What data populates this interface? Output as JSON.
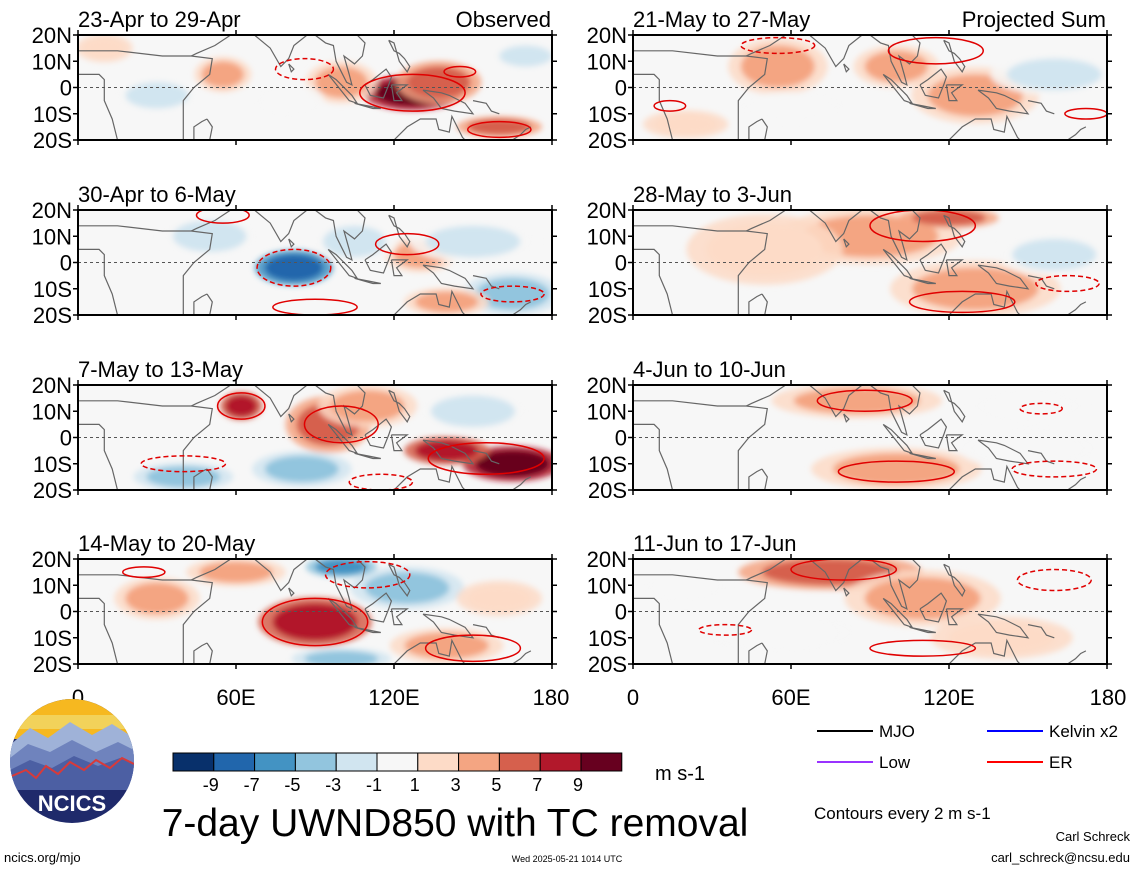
{
  "chart_data": {
    "type": "heatmap",
    "figure_title": "7-day UWND850 with TC removal",
    "variable": "850 hPa zonal wind anomaly",
    "units": "m s-1",
    "contour_note": "Contours every 2 m s-1",
    "x_ticks": [
      "0",
      "60E",
      "120E",
      "180"
    ],
    "y_ticks": [
      "20N",
      "10N",
      "0",
      "10S",
      "20S"
    ],
    "xlim": [
      0,
      180
    ],
    "ylim": [
      -20,
      20
    ],
    "colorbar": {
      "labels": [
        "-9",
        "-7",
        "-5",
        "-3",
        "-1",
        "1",
        "3",
        "5",
        "7",
        "9"
      ],
      "colors": [
        "#08306b",
        "#2166ac",
        "#4393c3",
        "#92c5de",
        "#d1e5f0",
        "#f7f7f7",
        "#fddbc7",
        "#f4a582",
        "#d6604d",
        "#b2182b",
        "#67001f"
      ]
    },
    "legend": [
      {
        "name": "MJO",
        "color": "#000000"
      },
      {
        "name": "Kelvin x2",
        "color": "#0000ff"
      },
      {
        "name": "Low",
        "color": "#9933ff"
      },
      {
        "name": "ER",
        "color": "#ff0000"
      }
    ],
    "panels": [
      {
        "title": "23-Apr to 29-Apr",
        "corner": "Observed",
        "column": 0,
        "row": 0,
        "anomalies": [
          {
            "lon": 127,
            "lat": -2,
            "value": 9,
            "rlon": 14,
            "rlat": 5
          },
          {
            "lon": 137,
            "lat": 2,
            "value": 5,
            "rlon": 12,
            "rlat": 6
          },
          {
            "lon": 160,
            "lat": -15,
            "value": 5,
            "rlon": 12,
            "rlat": 3
          },
          {
            "lon": 55,
            "lat": 5,
            "value": 3,
            "rlon": 8,
            "rlat": 5
          },
          {
            "lon": 100,
            "lat": 2,
            "value": 3,
            "rlon": 10,
            "rlat": 6
          },
          {
            "lon": 30,
            "lat": -3,
            "value": -3,
            "rlon": 12,
            "rlat": 5
          },
          {
            "lon": 80,
            "lat": -5,
            "value": -1,
            "rlon": 10,
            "rlat": 5
          },
          {
            "lon": 170,
            "lat": 12,
            "value": -3,
            "rlon": 10,
            "rlat": 4
          },
          {
            "lon": 10,
            "lat": 15,
            "value": 1,
            "rlon": 8,
            "rlat": 4
          }
        ],
        "contours": [
          {
            "lon": 127,
            "lat": -2,
            "rlon": 20,
            "rlat": 7,
            "dashed": false
          },
          {
            "lon": 86,
            "lat": 7,
            "rlon": 11,
            "rlat": 4,
            "dashed": true
          },
          {
            "lon": 145,
            "lat": 6,
            "rlon": 6,
            "rlat": 2,
            "dashed": false
          },
          {
            "lon": 160,
            "lat": -16,
            "rlon": 12,
            "rlat": 3,
            "dashed": false
          }
        ]
      },
      {
        "title": "30-Apr to 6-May",
        "corner": "",
        "column": 0,
        "row": 1,
        "anomalies": [
          {
            "lon": 82,
            "lat": -2,
            "value": -9,
            "rlon": 11,
            "rlat": 5
          },
          {
            "lon": 130,
            "lat": 3,
            "value": 3,
            "rlon": 10,
            "rlat": 5
          },
          {
            "lon": 105,
            "lat": 8,
            "value": -3,
            "rlon": 12,
            "rlat": 6
          },
          {
            "lon": 50,
            "lat": 10,
            "value": -3,
            "rlon": 14,
            "rlat": 6
          },
          {
            "lon": 165,
            "lat": -12,
            "value": -5,
            "rlon": 14,
            "rlat": 6
          },
          {
            "lon": 140,
            "lat": -15,
            "value": 3,
            "rlon": 12,
            "rlat": 4
          },
          {
            "lon": 150,
            "lat": 8,
            "value": -3,
            "rlon": 18,
            "rlat": 6
          }
        ],
        "contours": [
          {
            "lon": 82,
            "lat": -2,
            "rlon": 14,
            "rlat": 7,
            "dashed": true
          },
          {
            "lon": 125,
            "lat": 7,
            "rlon": 12,
            "rlat": 4,
            "dashed": false
          },
          {
            "lon": 55,
            "lat": 18,
            "rlon": 10,
            "rlat": 3,
            "dashed": false
          },
          {
            "lon": 90,
            "lat": -17,
            "rlon": 16,
            "rlat": 3,
            "dashed": false
          },
          {
            "lon": 165,
            "lat": -12,
            "rlon": 12,
            "rlat": 3,
            "dashed": true
          }
        ]
      },
      {
        "title": "7-May to 13-May",
        "corner": "",
        "column": 0,
        "row": 2,
        "anomalies": [
          {
            "lon": 165,
            "lat": -10,
            "value": 9,
            "rlon": 14,
            "rlat": 5
          },
          {
            "lon": 140,
            "lat": -5,
            "value": 7,
            "rlon": 12,
            "rlat": 4
          },
          {
            "lon": 62,
            "lat": 12,
            "value": 7,
            "rlon": 6,
            "rlat": 4
          },
          {
            "lon": 95,
            "lat": 5,
            "value": 5,
            "rlon": 12,
            "rlat": 8
          },
          {
            "lon": 110,
            "lat": 12,
            "value": 3,
            "rlon": 14,
            "rlat": 6
          },
          {
            "lon": 85,
            "lat": -12,
            "value": -5,
            "rlon": 14,
            "rlat": 5
          },
          {
            "lon": 40,
            "lat": -15,
            "value": -5,
            "rlon": 14,
            "rlat": 4
          },
          {
            "lon": 150,
            "lat": 10,
            "value": -3,
            "rlon": 16,
            "rlat": 6
          }
        ],
        "contours": [
          {
            "lon": 155,
            "lat": -8,
            "rlon": 22,
            "rlat": 6,
            "dashed": false
          },
          {
            "lon": 62,
            "lat": 12,
            "rlon": 9,
            "rlat": 5,
            "dashed": false
          },
          {
            "lon": 100,
            "lat": 5,
            "rlon": 14,
            "rlat": 7,
            "dashed": false
          },
          {
            "lon": 40,
            "lat": -10,
            "rlon": 16,
            "rlat": 3,
            "dashed": true
          },
          {
            "lon": 115,
            "lat": -17,
            "rlon": 12,
            "rlat": 3,
            "dashed": true
          }
        ]
      },
      {
        "title": "14-May to 20-May",
        "corner": "",
        "column": 0,
        "row": 3,
        "anomalies": [
          {
            "lon": 90,
            "lat": -4,
            "value": 7,
            "rlon": 16,
            "rlat": 7
          },
          {
            "lon": 140,
            "lat": -13,
            "value": 3,
            "rlon": 16,
            "rlat": 5
          },
          {
            "lon": 125,
            "lat": 9,
            "value": -5,
            "rlon": 16,
            "rlat": 6
          },
          {
            "lon": 100,
            "lat": 17,
            "value": -7,
            "rlon": 10,
            "rlat": 3
          },
          {
            "lon": 100,
            "lat": -18,
            "value": -5,
            "rlon": 14,
            "rlat": 3
          },
          {
            "lon": 30,
            "lat": 5,
            "value": 3,
            "rlon": 12,
            "rlat": 6
          },
          {
            "lon": 60,
            "lat": 15,
            "value": 3,
            "rlon": 14,
            "rlat": 4
          },
          {
            "lon": 160,
            "lat": 5,
            "value": 1,
            "rlon": 12,
            "rlat": 5
          }
        ],
        "contours": [
          {
            "lon": 90,
            "lat": -4,
            "rlon": 20,
            "rlat": 9,
            "dashed": false
          },
          {
            "lon": 150,
            "lat": -14,
            "rlon": 18,
            "rlat": 5,
            "dashed": false
          },
          {
            "lon": 110,
            "lat": 14,
            "rlon": 16,
            "rlat": 5,
            "dashed": true
          },
          {
            "lon": 25,
            "lat": 15,
            "rlon": 8,
            "rlat": 2,
            "dashed": false
          }
        ]
      },
      {
        "title": "21-May to 27-May",
        "corner": "Projected Sum",
        "column": 1,
        "row": 0,
        "anomalies": [
          {
            "lon": 55,
            "lat": 8,
            "value": 3,
            "rlon": 14,
            "rlat": 8
          },
          {
            "lon": 100,
            "lat": 8,
            "value": 3,
            "rlon": 12,
            "rlat": 6
          },
          {
            "lon": 130,
            "lat": -3,
            "value": 3,
            "rlon": 18,
            "rlat": 8
          },
          {
            "lon": 160,
            "lat": 5,
            "value": -3,
            "rlon": 18,
            "rlat": 6
          },
          {
            "lon": 60,
            "lat": -7,
            "value": -1,
            "rlon": 16,
            "rlat": 4
          },
          {
            "lon": 20,
            "lat": -14,
            "value": 1,
            "rlon": 12,
            "rlat": 4
          }
        ],
        "contours": [
          {
            "lon": 115,
            "lat": 14,
            "rlon": 18,
            "rlat": 5,
            "dashed": false
          },
          {
            "lon": 55,
            "lat": 16,
            "rlon": 14,
            "rlat": 3,
            "dashed": true
          },
          {
            "lon": 14,
            "lat": -7,
            "rlon": 6,
            "rlat": 2,
            "dashed": false
          },
          {
            "lon": 172,
            "lat": -10,
            "rlon": 8,
            "rlat": 2,
            "dashed": false
          }
        ]
      },
      {
        "title": "28-May to 3-Jun",
        "corner": "",
        "column": 1,
        "row": 1,
        "anomalies": [
          {
            "lon": 90,
            "lat": 10,
            "value": 3,
            "rlon": 26,
            "rlat": 8
          },
          {
            "lon": 130,
            "lat": -10,
            "value": 3,
            "rlon": 24,
            "rlat": 8
          },
          {
            "lon": 120,
            "lat": 17,
            "value": 5,
            "rlon": 14,
            "rlat": 3
          },
          {
            "lon": 160,
            "lat": 3,
            "value": -3,
            "rlon": 16,
            "rlat": 6
          },
          {
            "lon": 50,
            "lat": 5,
            "value": 1,
            "rlon": 22,
            "rlat": 10
          }
        ],
        "contours": [
          {
            "lon": 110,
            "lat": 14,
            "rlon": 20,
            "rlat": 6,
            "dashed": false
          },
          {
            "lon": 125,
            "lat": -15,
            "rlon": 20,
            "rlat": 4,
            "dashed": false
          },
          {
            "lon": 165,
            "lat": -8,
            "rlon": 12,
            "rlat": 3,
            "dashed": true
          }
        ]
      },
      {
        "title": "4-Jun to 10-Jun",
        "corner": "",
        "column": 1,
        "row": 2,
        "anomalies": [
          {
            "lon": 85,
            "lat": 14,
            "value": 3,
            "rlon": 24,
            "rlat": 5
          },
          {
            "lon": 100,
            "lat": -12,
            "value": 3,
            "rlon": 24,
            "rlat": 6
          },
          {
            "lon": 150,
            "lat": -4,
            "value": -1,
            "rlon": 20,
            "rlat": 6
          },
          {
            "lon": 150,
            "lat": 12,
            "value": -1,
            "rlon": 16,
            "rlat": 5
          }
        ],
        "contours": [
          {
            "lon": 88,
            "lat": 14,
            "rlon": 18,
            "rlat": 4,
            "dashed": false
          },
          {
            "lon": 100,
            "lat": -13,
            "rlon": 22,
            "rlat": 4,
            "dashed": false
          },
          {
            "lon": 155,
            "lat": 11,
            "rlon": 8,
            "rlat": 2,
            "dashed": true
          },
          {
            "lon": 160,
            "lat": -12,
            "rlon": 16,
            "rlat": 3,
            "dashed": true
          }
        ]
      },
      {
        "title": "11-Jun to 17-Jun",
        "corner": "",
        "column": 1,
        "row": 3,
        "anomalies": [
          {
            "lon": 75,
            "lat": 15,
            "value": 5,
            "rlon": 26,
            "rlat": 5
          },
          {
            "lon": 110,
            "lat": 5,
            "value": 3,
            "rlon": 22,
            "rlat": 8
          },
          {
            "lon": 55,
            "lat": -8,
            "value": -1,
            "rlon": 22,
            "rlat": 6
          },
          {
            "lon": 140,
            "lat": -10,
            "value": 1,
            "rlon": 20,
            "rlat": 6
          },
          {
            "lon": 20,
            "lat": 10,
            "value": -1,
            "rlon": 12,
            "rlat": 5
          }
        ],
        "contours": [
          {
            "lon": 80,
            "lat": 16,
            "rlon": 20,
            "rlat": 4,
            "dashed": false
          },
          {
            "lon": 160,
            "lat": 12,
            "rlon": 14,
            "rlat": 4,
            "dashed": true
          },
          {
            "lon": 35,
            "lat": -7,
            "rlon": 10,
            "rlat": 2,
            "dashed": true
          },
          {
            "lon": 110,
            "lat": -14,
            "rlon": 20,
            "rlat": 3,
            "dashed": false
          }
        ]
      }
    ]
  },
  "logo": {
    "text": "NCICS"
  },
  "footer": {
    "site": "ncics.org/mjo",
    "timestamp": "Wed 2025-05-21 1014 UTC",
    "author": "Carl Schreck",
    "email": "carl_schreck@ncsu.edu"
  }
}
